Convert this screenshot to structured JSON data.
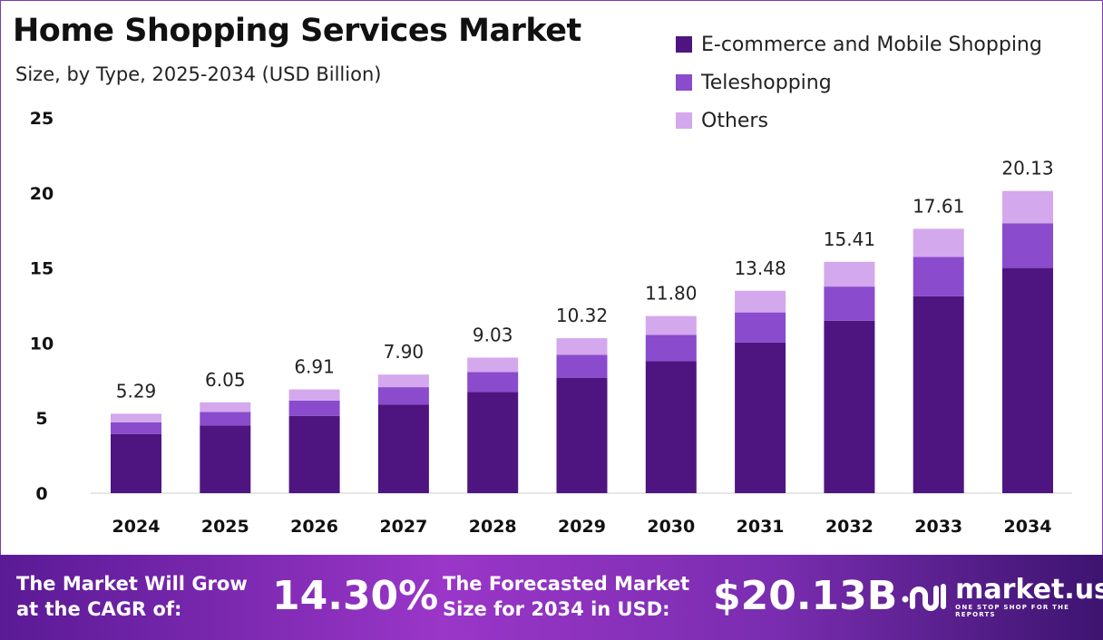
{
  "chart_data": {
    "type": "bar",
    "stacked": true,
    "title": "Home Shopping Services Market",
    "subtitle": "Size, by Type, 2025-2034 (USD Billion)",
    "categories": [
      "2024",
      "2025",
      "2026",
      "2027",
      "2028",
      "2029",
      "2030",
      "2031",
      "2032",
      "2033",
      "2034"
    ],
    "series": [
      {
        "name": "E-commerce and Mobile Shopping",
        "color": "#4e1580",
        "values": [
          3.94,
          4.51,
          5.15,
          5.89,
          6.73,
          7.69,
          8.79,
          10.04,
          11.48,
          13.12,
          15.0
        ]
      },
      {
        "name": "Teleshopping",
        "color": "#8a4bcc",
        "values": [
          0.78,
          0.9,
          1.02,
          1.17,
          1.34,
          1.53,
          1.75,
          2.0,
          2.28,
          2.61,
          2.98
        ]
      },
      {
        "name": "Others",
        "color": "#d4a8ec",
        "values": [
          0.57,
          0.64,
          0.74,
          0.84,
          0.96,
          1.1,
          1.26,
          1.44,
          1.65,
          1.88,
          2.15
        ]
      }
    ],
    "totals": [
      "5.29",
      "6.05",
      "6.91",
      "7.90",
      "9.03",
      "10.32",
      "11.80",
      "13.48",
      "15.41",
      "17.61",
      "20.13"
    ],
    "yticks": [
      "0",
      "5",
      "10",
      "15",
      "20",
      "25"
    ],
    "ylim": [
      0,
      25
    ],
    "grid": false,
    "legend": "top-right"
  },
  "footer": {
    "cagr_label_1": "The Market Will Grow",
    "cagr_label_2": "at the CAGR of:",
    "cagr_value": "14.30%",
    "forecast_label_1": "The Forecasted Market",
    "forecast_label_2": "Size for 2034 in USD:",
    "forecast_value": "$20.13B",
    "logo_name": "market.us",
    "logo_tagline": "ONE STOP SHOP FOR THE REPORTS"
  }
}
